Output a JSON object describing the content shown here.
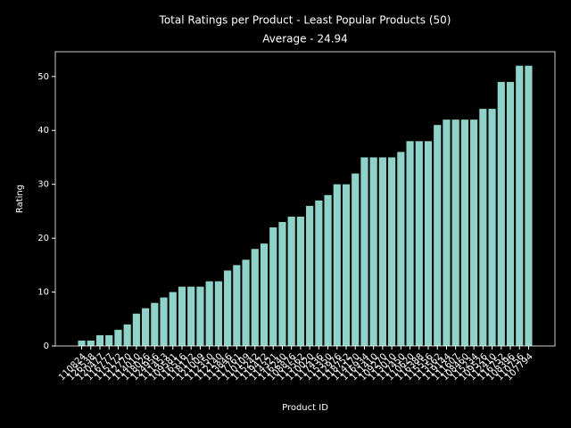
{
  "chart_data": {
    "type": "bar",
    "title": "Total Ratings per Product - Least Popular Products (50)",
    "subtitle": "Average - 24.94",
    "x_label": "Product ID",
    "y_label": "Rating",
    "categories": [
      "110824",
      "126538",
      "120477",
      "116777",
      "115172",
      "112770",
      "114010",
      "118026",
      "124956",
      "111453",
      "109581",
      "116516",
      "118172",
      "121009",
      "112350",
      "112140",
      "113846",
      "117761",
      "110109",
      "115242",
      "119472",
      "114321",
      "116240",
      "108876",
      "113562",
      "110020",
      "117436",
      "115350",
      "112976",
      "118752",
      "114170",
      "116934",
      "111410",
      "109270",
      "113010",
      "117450",
      "110620",
      "116388",
      "115556",
      "113562",
      "119144",
      "111607",
      "108460",
      "115234",
      "109526",
      "112410",
      "116752",
      "108396",
      "110756",
      "107794"
    ],
    "values": [
      1,
      1,
      2,
      2,
      3,
      4,
      6,
      7,
      8,
      9,
      10,
      11,
      11,
      11,
      12,
      12,
      14,
      15,
      16,
      18,
      19,
      22,
      23,
      24,
      24,
      26,
      27,
      28,
      30,
      30,
      32,
      35,
      35,
      35,
      35,
      36,
      38,
      38,
      38,
      41,
      42,
      42,
      42,
      42,
      44,
      44,
      49,
      49,
      52,
      52
    ],
    "color": "#8dd3c7",
    "ylim": [
      0,
      54.6
    ],
    "yticks": [
      0,
      10,
      20,
      30,
      40,
      50
    ],
    "grid": false
  }
}
